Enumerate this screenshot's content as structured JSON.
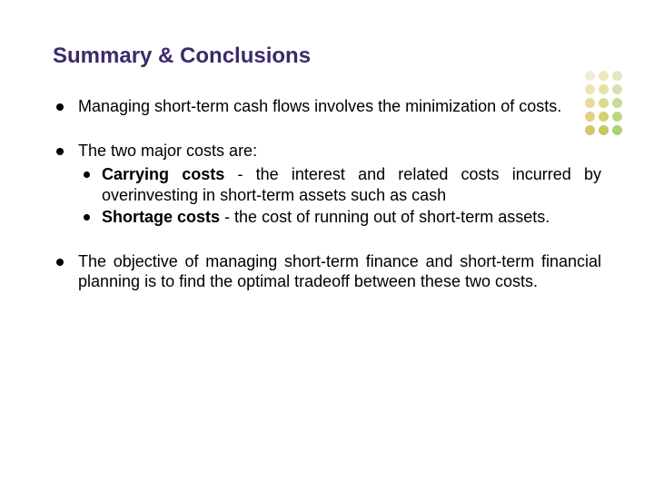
{
  "title": {
    "text": "Summary & Conclusions",
    "color": "#3b2a6b",
    "fontsize": 24
  },
  "body": {
    "fontsize": 18,
    "color": "#000000",
    "line_height": 1.25
  },
  "bullet_colors": {
    "level1": "#000000",
    "level2": "#000000"
  },
  "dot_grid": {
    "rows": 5,
    "cols": 3,
    "colors": [
      [
        "#efecd6",
        "#f0e9be",
        "#e2e8c6"
      ],
      [
        "#efe3b4",
        "#e7e1a3",
        "#d4e2b0"
      ],
      [
        "#e9dc9a",
        "#dfd98c",
        "#c7dc9b"
      ],
      [
        "#e3d182",
        "#d6d075",
        "#bad786"
      ],
      [
        "#d8c768",
        "#cbc65d",
        "#add271"
      ]
    ]
  },
  "items": [
    {
      "text": "Managing short-term cash flows involves the minimization of costs."
    },
    {
      "text": "The two major costs are:",
      "children": [
        {
          "bold": "Carrying costs",
          "rest": " - the interest and related costs incurred by overinvesting in short-term assets such as cash"
        },
        {
          "bold": "Shortage costs",
          "rest": " - the cost of running out of short-term assets."
        }
      ]
    },
    {
      "text": "The objective of managing short-term finance and short-term financial planning is to find the optimal tradeoff between these two costs."
    }
  ]
}
